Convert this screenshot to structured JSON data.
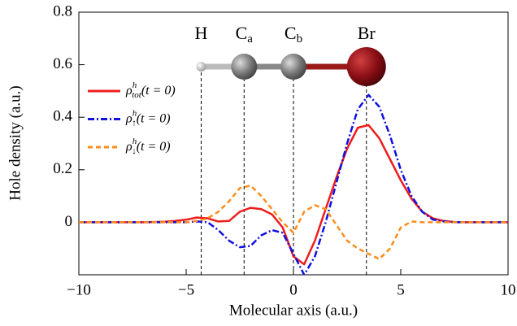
{
  "chart_data": {
    "type": "line",
    "x_label": "Molecular axis (a.u.)",
    "y_label": "Hole density (a.u.)",
    "xlim": [
      -10,
      10
    ],
    "ylim": [
      -0.2,
      0.8
    ],
    "xticks": [
      {
        "value": -10,
        "label": "−10"
      },
      {
        "value": -5,
        "label": "−5"
      },
      0,
      5,
      10
    ],
    "yticks": [
      0,
      0.2,
      0.4,
      0.6,
      0.8
    ],
    "legend": "upper left",
    "x": [
      -10,
      -9.5,
      -9,
      -8.5,
      -8,
      -7.5,
      -7,
      -6.5,
      -6,
      -5.5,
      -5,
      -4.5,
      -4,
      -3.5,
      -3,
      -2.5,
      -2,
      -1.5,
      -1,
      -0.5,
      0,
      0.5,
      1,
      1.5,
      2,
      2.5,
      3,
      3.5,
      4,
      4.5,
      5,
      5.5,
      6,
      6.5,
      7,
      7.5,
      8,
      8.5,
      9,
      9.5,
      10
    ],
    "series": [
      {
        "name": "ρ",
        "sup": "h",
        "sub": "tot",
        "arg": "(t = 0)",
        "color": "#ee1c1c",
        "dash": "solid",
        "values": [
          0,
          0,
          0,
          0,
          0,
          0,
          0,
          0.001,
          0.002,
          0.005,
          0.01,
          0.018,
          0.015,
          0.003,
          0.005,
          0.04,
          0.055,
          0.05,
          0.03,
          -0.02,
          -0.13,
          -0.16,
          -0.07,
          0.05,
          0.17,
          0.28,
          0.36,
          0.37,
          0.32,
          0.24,
          0.16,
          0.09,
          0.04,
          0.015,
          0.005,
          0.001,
          0,
          0,
          0,
          0,
          0
        ]
      },
      {
        "name": "ρ",
        "sup": "h",
        "sub": "↑",
        "arg": "(t = 0)",
        "color": "#1010e0",
        "dash": "dashdot",
        "values": [
          0,
          0,
          0,
          0,
          0,
          0,
          0,
          0,
          0,
          0,
          0,
          0.003,
          0,
          -0.03,
          -0.07,
          -0.095,
          -0.09,
          -0.05,
          -0.03,
          -0.04,
          -0.12,
          -0.2,
          -0.13,
          0,
          0.15,
          0.3,
          0.43,
          0.485,
          0.44,
          0.33,
          0.2,
          0.1,
          0.04,
          0.01,
          0.003,
          0,
          0,
          0,
          0,
          0,
          0
        ]
      },
      {
        "name": "ρ",
        "sup": "h",
        "sub": "↓",
        "arg": "(t = 0)",
        "color": "#ff8c1a",
        "dash": "dashed",
        "values": [
          0,
          0,
          0,
          0,
          0,
          0,
          0,
          0,
          0,
          0,
          0,
          0.005,
          0.015,
          0.04,
          0.08,
          0.13,
          0.14,
          0.1,
          0.05,
          0,
          -0.04,
          0.04,
          0.065,
          0.05,
          -0.01,
          -0.07,
          -0.1,
          -0.12,
          -0.14,
          -0.1,
          -0.02,
          0.003,
          0,
          0,
          0,
          0,
          0,
          0,
          0,
          0,
          0
        ]
      }
    ],
    "atoms": [
      {
        "label": "H",
        "x": -4.3
      },
      {
        "label": "C",
        "sub": "a",
        "x": -2.3
      },
      {
        "label": "C",
        "sub": "b",
        "x": 0
      },
      {
        "label": "Br",
        "x": 3.4
      }
    ]
  }
}
